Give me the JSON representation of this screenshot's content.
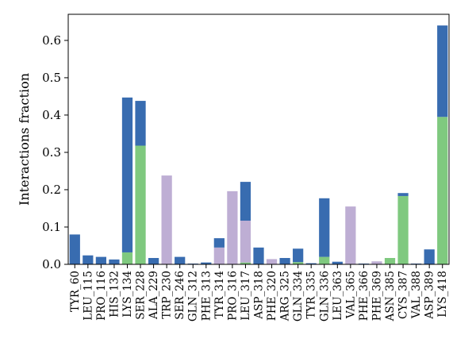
{
  "chart_data": {
    "type": "bar",
    "stacked": true,
    "ylabel": "Interactions fraction",
    "xlabel": "",
    "ylim": [
      0,
      0.67
    ],
    "yticks": [
      "0.0",
      "0.1",
      "0.2",
      "0.3",
      "0.4",
      "0.5",
      "0.6"
    ],
    "grid": false,
    "legend": "none",
    "colors": {
      "green": "#7fc97f",
      "purple": "#beaed4",
      "blue": "#386cb0"
    },
    "categories": [
      "TYR_60",
      "LEU_115",
      "PRO_116",
      "HIS_132",
      "LYS_134",
      "SER_228",
      "ALA_229",
      "TRP_230",
      "SER_246",
      "GLN_312",
      "PHE_313",
      "TYR_314",
      "PRO_316",
      "LEU_317",
      "ASP_318",
      "PHE_320",
      "ARG_325",
      "GLN_334",
      "TYR_335",
      "GLN_336",
      "LEU_363",
      "VAL_365",
      "PHE_366",
      "PHE_369",
      "ASN_385",
      "CYS_387",
      "VAL_388",
      "ASP_389",
      "LYS_418"
    ],
    "series": [
      {
        "color": "green",
        "values": [
          0,
          0,
          0,
          0,
          0.032,
          0.318,
          0,
          0,
          0,
          0,
          0,
          0,
          0,
          0.005,
          0,
          0,
          0,
          0.006,
          0,
          0.02,
          0,
          0,
          0,
          0,
          0.017,
          0.183,
          0,
          0,
          0.395
        ]
      },
      {
        "color": "purple",
        "values": [
          0,
          0,
          0,
          0,
          0,
          0,
          0,
          0.238,
          0,
          0,
          0,
          0.045,
          0.196,
          0.112,
          0,
          0.014,
          0,
          0,
          0,
          0,
          0,
          0.155,
          0,
          0.008,
          0,
          0,
          0,
          0,
          0
        ]
      },
      {
        "color": "blue",
        "values": [
          0.08,
          0.024,
          0.02,
          0.013,
          0.415,
          0.12,
          0.017,
          0,
          0.02,
          0.002,
          0.005,
          0.025,
          0,
          0.104,
          0.045,
          0,
          0.017,
          0.036,
          0.003,
          0.157,
          0.007,
          0,
          0.002,
          0,
          0,
          0.008,
          0.002,
          0.04,
          0.245
        ]
      }
    ]
  }
}
